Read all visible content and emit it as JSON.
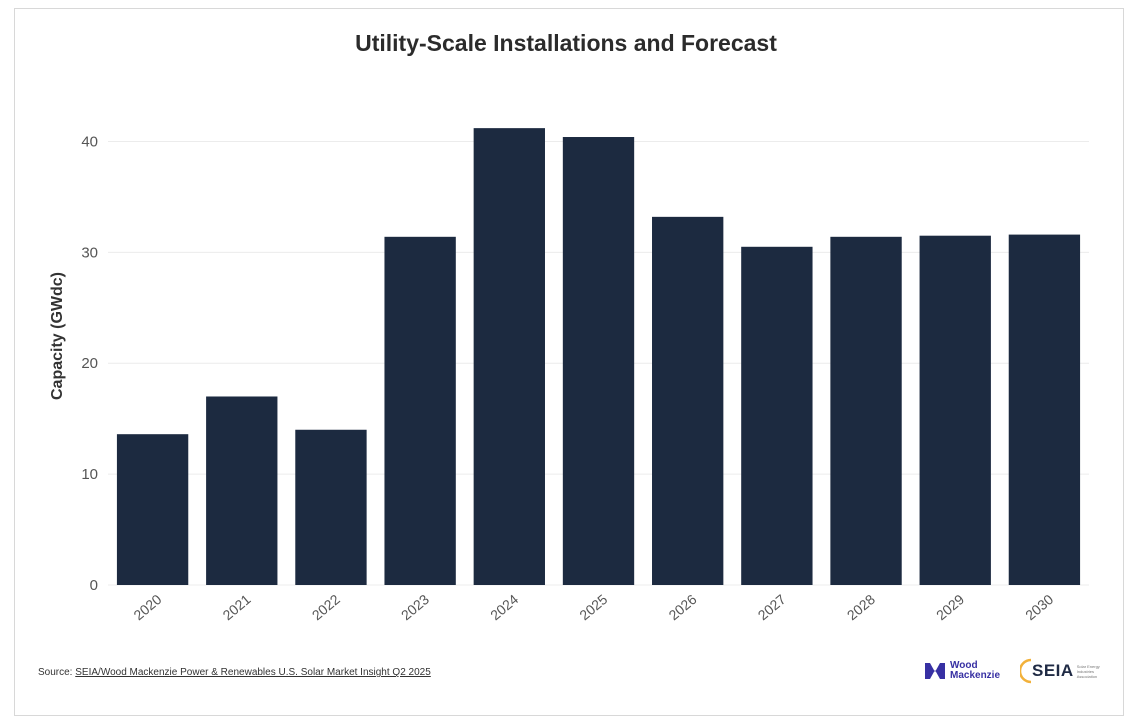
{
  "chart_data": {
    "type": "bar",
    "title": "Utility-Scale Installations and Forecast",
    "ylabel": "Capacity (GWdc)",
    "xlabel": "",
    "categories": [
      "2020",
      "2021",
      "2022",
      "2023",
      "2024",
      "2025",
      "2026",
      "2027",
      "2028",
      "2029",
      "2030"
    ],
    "values": [
      13.6,
      17.0,
      14.0,
      31.4,
      41.2,
      40.4,
      33.2,
      30.5,
      31.4,
      31.5,
      31.6
    ],
    "ylim": [
      0,
      45
    ],
    "yticks": [
      0,
      10,
      20,
      30,
      40
    ],
    "grid": true,
    "legend": "none",
    "bar_color": "#1c2a40",
    "grid_color": "#ececec"
  },
  "source": {
    "prefix": "Source: ",
    "link_text": "SEIA/Wood Mackenzie Power & Renewables U.S. Solar Market Insight Q2 2025"
  },
  "logos": {
    "woodmac_line1": "Wood",
    "woodmac_line2": "Mackenzie",
    "seia": "SEIA",
    "seia_sub": "Solar Energy Industries Association",
    "woodmac_color": "#3730a3",
    "seia_accent": "#f2b13a"
  }
}
